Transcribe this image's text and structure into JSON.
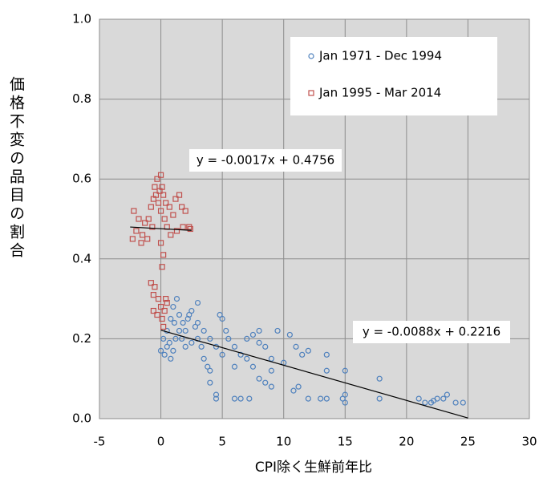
{
  "chart_data": {
    "type": "scatter",
    "x_label": "CPI除く生鮮前年比",
    "y_label": "価格不変の品目の割合",
    "xlim": [
      -5,
      30
    ],
    "ylim": [
      0,
      1
    ],
    "xticks": [
      -5,
      0,
      5,
      10,
      15,
      20,
      25,
      30
    ],
    "yticks": [
      {
        "value": 0,
        "label": "0.0"
      },
      {
        "value": 0.2,
        "label": "0.2"
      },
      {
        "value": 0.4,
        "label": "0.4"
      },
      {
        "value": 0.6,
        "label": "0.6"
      },
      {
        "value": 0.8,
        "label": "0.8"
      },
      {
        "value": 1,
        "label": "1.0"
      }
    ],
    "grid": true,
    "series": [
      {
        "name": "Jan 1971 - Dec 1994",
        "color": "#4f81bd",
        "marker": "circle",
        "x": [
          0,
          0.3,
          0.5,
          0.8,
          1,
          1.2,
          0.5,
          0.8,
          1,
          1.3,
          1.5,
          1.8,
          2,
          2.2,
          2.5,
          2.8,
          3,
          3.3,
          3.5,
          3.8,
          4,
          2.5,
          2,
          1.5,
          1.7,
          3,
          3.5,
          4,
          4.5,
          4.8,
          5,
          5.3,
          5.5,
          6,
          6.5,
          7,
          7.5,
          8,
          8.5,
          9,
          9.5,
          7,
          7.5,
          8,
          8.5,
          9,
          6,
          6.5,
          7.2,
          4.5,
          4.5,
          4,
          10,
          10.5,
          11,
          11.5,
          12,
          10.8,
          11.2,
          12,
          13,
          13.5,
          13.5,
          13.5,
          15,
          15,
          14.8,
          15,
          17.8,
          17.8,
          21,
          21.5,
          22,
          22.5,
          23,
          23.3,
          24,
          24.6,
          22.2,
          6,
          5,
          8,
          9,
          3,
          2.3,
          0.2,
          0.7,
          1.1
        ],
        "values": [
          0.17,
          0.16,
          0.18,
          0.15,
          0.17,
          0.2,
          0.22,
          0.25,
          0.28,
          0.3,
          0.26,
          0.24,
          0.22,
          0.25,
          0.27,
          0.23,
          0.2,
          0.18,
          0.15,
          0.13,
          0.12,
          0.19,
          0.18,
          0.22,
          0.2,
          0.24,
          0.22,
          0.2,
          0.18,
          0.26,
          0.25,
          0.22,
          0.2,
          0.18,
          0.16,
          0.2,
          0.21,
          0.22,
          0.18,
          0.15,
          0.22,
          0.15,
          0.13,
          0.1,
          0.09,
          0.08,
          0.05,
          0.05,
          0.05,
          0.06,
          0.05,
          0.09,
          0.14,
          0.21,
          0.18,
          0.16,
          0.17,
          0.07,
          0.08,
          0.05,
          0.05,
          0.05,
          0.16,
          0.12,
          0.12,
          0.06,
          0.05,
          0.04,
          0.1,
          0.05,
          0.05,
          0.04,
          0.04,
          0.05,
          0.05,
          0.06,
          0.04,
          0.04,
          0.045,
          0.13,
          0.16,
          0.19,
          0.12,
          0.29,
          0.26,
          0.2,
          0.19,
          0.24
        ]
      },
      {
        "name": "Jan 1995 - Mar 2014",
        "color": "#c0504d",
        "marker": "square",
        "x": [
          -2.3,
          -2,
          -1.8,
          -2.2,
          -1.5,
          -1.3,
          -1,
          -0.8,
          -0.6,
          -0.5,
          -0.3,
          0,
          0.1,
          0.2,
          -0.2,
          0,
          0.3,
          0.5,
          0.7,
          1,
          1.2,
          1.5,
          1.7,
          2,
          2.3,
          2.4,
          1.8,
          1.3,
          0.8,
          -1.1,
          -1.6,
          -0.7,
          0.4,
          0,
          0.2,
          0.1,
          -0.5,
          -0.8,
          -0.6,
          -0.2,
          0,
          0.3,
          0.5,
          0.1,
          0.2,
          -0.3,
          -0.6,
          0.4,
          -0.1,
          -0.4
        ],
        "values": [
          0.45,
          0.47,
          0.5,
          0.52,
          0.46,
          0.49,
          0.5,
          0.53,
          0.55,
          0.58,
          0.6,
          0.61,
          0.58,
          0.56,
          0.54,
          0.52,
          0.5,
          0.48,
          0.53,
          0.51,
          0.55,
          0.56,
          0.53,
          0.52,
          0.48,
          0.475,
          0.48,
          0.47,
          0.46,
          0.45,
          0.44,
          0.48,
          0.54,
          0.44,
          0.41,
          0.38,
          0.33,
          0.34,
          0.31,
          0.3,
          0.28,
          0.27,
          0.29,
          0.25,
          0.23,
          0.26,
          0.27,
          0.3,
          0.57,
          0.56
        ]
      }
    ],
    "trendlines": [
      {
        "label": "y = -0.0017x + 0.4756",
        "x": [
          -2.5,
          2.5
        ],
        "y": [
          0.4798,
          0.4714
        ]
      },
      {
        "label": "y = -0.0088x + 0.2216",
        "x": [
          0,
          25
        ],
        "y": [
          0.2216,
          0.0016
        ]
      }
    ]
  }
}
